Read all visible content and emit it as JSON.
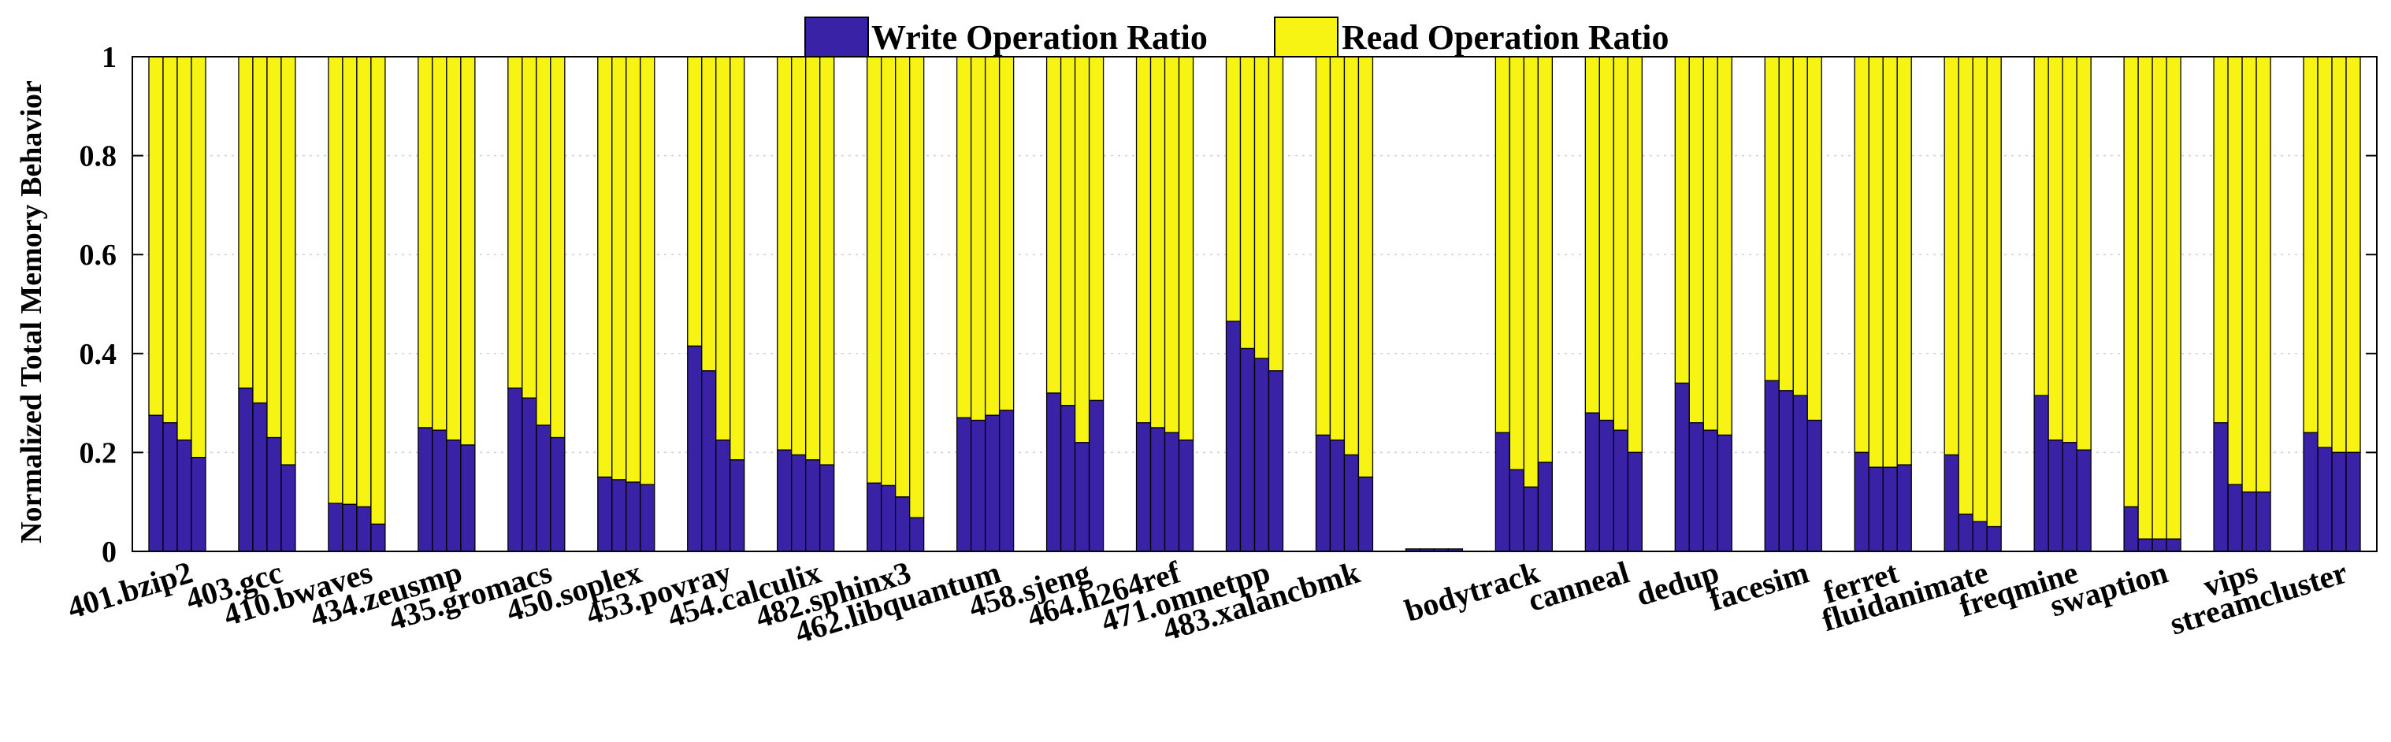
{
  "chart_data": {
    "type": "bar",
    "stacked": true,
    "ylabel": "Normalized Total Memory Behavior",
    "xlabel": "",
    "ylim": [
      0,
      1
    ],
    "yticks": [
      0,
      0.2,
      0.4,
      0.6,
      0.8,
      1
    ],
    "ytick_labels": [
      "0",
      "0.2",
      "0.4",
      "0.6",
      "0.8",
      "1"
    ],
    "grid": "dotted horizontal at 0.2 intervals",
    "legend_position": "top-center",
    "bars_per_group": 4,
    "series": [
      {
        "name": "Write Operation Ratio",
        "color": "#3a22a6"
      },
      {
        "name": "Read Operation Ratio",
        "color": "#f7f414"
      }
    ],
    "categories": [
      "401.bzip2",
      "403.gcc",
      "410.bwaves",
      "434.zeusmp",
      "435.gromacs",
      "450.soplex",
      "453.povray",
      "454.calculix",
      "482.sphinx3",
      "462.libquantum",
      "458.sjeng",
      "464.h264ref",
      "471.omnetpp",
      "483.xalancbmk",
      "",
      "bodytrack",
      "canneal",
      "dedup",
      "facesim",
      "ferret",
      "fluidanimate",
      "freqmine",
      "swaption",
      "vips",
      "streamcluster"
    ],
    "write_values": [
      [
        0.275,
        0.26,
        0.225,
        0.19
      ],
      [
        0.33,
        0.3,
        0.23,
        0.175
      ],
      [
        0.097,
        0.095,
        0.09,
        0.055
      ],
      [
        0.25,
        0.245,
        0.225,
        0.215
      ],
      [
        0.33,
        0.31,
        0.255,
        0.23
      ],
      [
        0.15,
        0.145,
        0.14,
        0.135
      ],
      [
        0.415,
        0.365,
        0.225,
        0.185
      ],
      [
        0.205,
        0.195,
        0.185,
        0.175
      ],
      [
        0.138,
        0.133,
        0.11,
        0.068
      ],
      [
        0.27,
        0.265,
        0.275,
        0.285
      ],
      [
        0.32,
        0.295,
        0.22,
        0.305
      ],
      [
        0.26,
        0.25,
        0.24,
        0.225
      ],
      [
        0.465,
        0.41,
        0.39,
        0.365
      ],
      [
        0.235,
        0.225,
        0.195,
        0.15
      ],
      [
        0.005,
        0.005,
        0.005,
        0.005
      ],
      [
        0.24,
        0.165,
        0.13,
        0.18
      ],
      [
        0.28,
        0.265,
        0.245,
        0.2
      ],
      [
        0.34,
        0.26,
        0.245,
        0.235
      ],
      [
        0.345,
        0.325,
        0.315,
        0.265
      ],
      [
        0.2,
        0.17,
        0.17,
        0.175
      ],
      [
        0.195,
        0.075,
        0.06,
        0.05
      ],
      [
        0.315,
        0.225,
        0.22,
        0.205
      ],
      [
        0.09,
        0.025,
        0.025,
        0.025
      ],
      [
        0.26,
        0.135,
        0.12,
        0.12
      ],
      [
        0.24,
        0.21,
        0.2,
        0.2
      ]
    ]
  }
}
